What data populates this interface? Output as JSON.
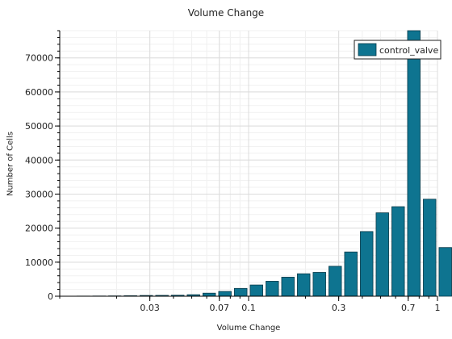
{
  "chart_data": {
    "type": "bar",
    "title": "Volume Change",
    "xlabel": "Volume Change",
    "ylabel": "Number of Cells",
    "x_scale": "log",
    "xlim": [
      0.01,
      1
    ],
    "ylim": [
      0,
      78000
    ],
    "x_ticks": [
      0.03,
      0.07,
      0.1,
      0.3,
      0.7,
      1
    ],
    "x_tick_labels": [
      "0.03",
      "0.07",
      "0.1",
      "0.3",
      "0.7",
      "1"
    ],
    "y_ticks": [
      0,
      10000,
      20000,
      30000,
      40000,
      50000,
      60000,
      70000
    ],
    "y_tick_labels": [
      "0",
      "10000",
      "20000",
      "30000",
      "40000",
      "50000",
      "60000",
      "70000"
    ],
    "grid": true,
    "legend_position": "top-right",
    "series": [
      {
        "name": "control_valve",
        "color": "#0e7490",
        "bins": [
          [
            0.01,
            0.0121,
            20
          ],
          [
            0.0121,
            0.0147,
            40
          ],
          [
            0.0147,
            0.0178,
            60
          ],
          [
            0.0178,
            0.0215,
            90
          ],
          [
            0.0215,
            0.0261,
            150
          ],
          [
            0.0261,
            0.0316,
            220
          ],
          [
            0.0316,
            0.0383,
            250
          ],
          [
            0.0383,
            0.0464,
            300
          ],
          [
            0.0464,
            0.0562,
            450
          ],
          [
            0.0562,
            0.0681,
            900
          ],
          [
            0.0681,
            0.0825,
            1400
          ],
          [
            0.0825,
            0.1,
            2300
          ],
          [
            0.1,
            0.1212,
            3300
          ],
          [
            0.1212,
            0.1468,
            4400
          ],
          [
            0.1468,
            0.1778,
            5600
          ],
          [
            0.1778,
            0.2154,
            6600
          ],
          [
            0.2154,
            0.261,
            7000
          ],
          [
            0.261,
            0.3162,
            8800
          ],
          [
            0.3162,
            0.3831,
            13000
          ],
          [
            0.3831,
            0.4642,
            19000
          ],
          [
            0.4642,
            0.5623,
            24500
          ],
          [
            0.5623,
            0.6813,
            26300
          ],
          [
            0.6813,
            0.8254,
            78000
          ],
          [
            0.8254,
            1.0,
            28500
          ],
          [
            1.0,
            1.2115,
            14300
          ]
        ]
      }
    ]
  }
}
